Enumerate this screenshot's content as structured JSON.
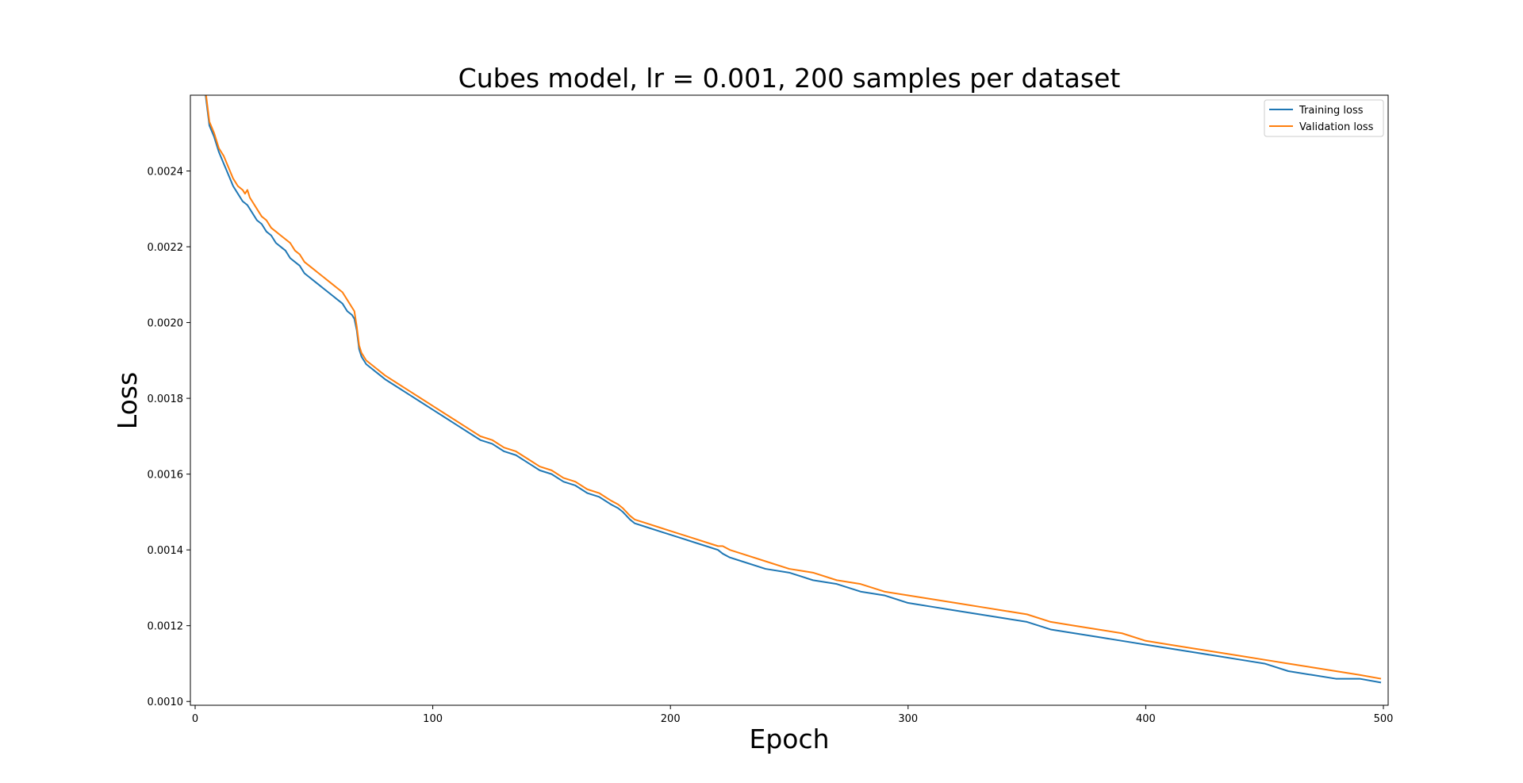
{
  "chart_data": {
    "type": "line",
    "title": "Cubes model, lr = 0.001, 200 samples per dataset",
    "xlabel": "Epoch",
    "ylabel": "Loss",
    "xlim": [
      -2,
      502
    ],
    "ylim": [
      0.00099,
      0.0026
    ],
    "x_ticks": [
      0,
      100,
      200,
      300,
      400,
      500
    ],
    "y_ticks": [
      0.001,
      0.0012,
      0.0014,
      0.0016,
      0.0018,
      0.002,
      0.0022,
      0.0024
    ],
    "x_tick_labels": [
      "0",
      "100",
      "200",
      "300",
      "400",
      "500"
    ],
    "y_tick_labels": [
      "0.0010",
      "0.0012",
      "0.0014",
      "0.0016",
      "0.0018",
      "0.0020",
      "0.0022",
      "0.0024"
    ],
    "grid": false,
    "legend_position": "top-right",
    "series": [
      {
        "name": "Training loss",
        "color": "#1f77b4",
        "x": [
          2,
          4,
          6,
          8,
          10,
          12,
          14,
          16,
          18,
          20,
          22,
          24,
          26,
          28,
          30,
          32,
          34,
          36,
          38,
          40,
          42,
          44,
          46,
          48,
          50,
          52,
          54,
          56,
          58,
          60,
          62,
          64,
          66,
          67,
          68,
          69,
          70,
          71,
          72,
          74,
          76,
          78,
          80,
          85,
          90,
          95,
          100,
          105,
          110,
          115,
          120,
          125,
          130,
          135,
          140,
          145,
          150,
          155,
          160,
          165,
          170,
          175,
          178,
          180,
          183,
          185,
          190,
          195,
          200,
          205,
          210,
          215,
          220,
          222,
          225,
          230,
          240,
          250,
          260,
          270,
          280,
          290,
          300,
          310,
          320,
          330,
          340,
          350,
          360,
          370,
          380,
          390,
          400,
          410,
          420,
          430,
          440,
          450,
          460,
          470,
          480,
          490,
          499
        ],
        "y": [
          0.0027,
          0.00262,
          0.00252,
          0.00249,
          0.00245,
          0.00242,
          0.00239,
          0.00236,
          0.00234,
          0.00232,
          0.00231,
          0.00229,
          0.00227,
          0.00226,
          0.00224,
          0.00223,
          0.00221,
          0.0022,
          0.00219,
          0.00217,
          0.00216,
          0.00215,
          0.00213,
          0.00212,
          0.00211,
          0.0021,
          0.00209,
          0.00208,
          0.00207,
          0.00206,
          0.00205,
          0.00203,
          0.00202,
          0.00201,
          0.00198,
          0.00193,
          0.00191,
          0.0019,
          0.00189,
          0.00188,
          0.00187,
          0.00186,
          0.00185,
          0.00183,
          0.00181,
          0.00179,
          0.00177,
          0.00175,
          0.00173,
          0.00171,
          0.00169,
          0.00168,
          0.00166,
          0.00165,
          0.00163,
          0.00161,
          0.0016,
          0.00158,
          0.00157,
          0.00155,
          0.00154,
          0.00152,
          0.00151,
          0.0015,
          0.00148,
          0.00147,
          0.00146,
          0.00145,
          0.00144,
          0.00143,
          0.00142,
          0.00141,
          0.0014,
          0.00139,
          0.00138,
          0.00137,
          0.00135,
          0.00134,
          0.00132,
          0.00131,
          0.00129,
          0.00128,
          0.00126,
          0.00125,
          0.00124,
          0.00123,
          0.00122,
          0.00121,
          0.00119,
          0.00118,
          0.00117,
          0.00116,
          0.00115,
          0.00114,
          0.00113,
          0.00112,
          0.00111,
          0.0011,
          0.00108,
          0.00107,
          0.00106,
          0.00106,
          0.00105
        ]
      },
      {
        "name": "Validation loss",
        "color": "#ff7f0e",
        "x": [
          2,
          4,
          6,
          8,
          10,
          12,
          14,
          16,
          18,
          20,
          21,
          22,
          23,
          24,
          26,
          28,
          30,
          32,
          34,
          36,
          38,
          40,
          42,
          44,
          46,
          48,
          50,
          52,
          54,
          56,
          58,
          60,
          62,
          64,
          66,
          67,
          68,
          69,
          70,
          71,
          72,
          74,
          76,
          78,
          80,
          85,
          90,
          95,
          100,
          105,
          110,
          115,
          120,
          125,
          130,
          135,
          140,
          145,
          150,
          155,
          160,
          165,
          170,
          175,
          178,
          180,
          183,
          185,
          190,
          195,
          200,
          205,
          210,
          215,
          220,
          222,
          225,
          230,
          240,
          250,
          260,
          270,
          280,
          290,
          300,
          310,
          320,
          330,
          340,
          350,
          360,
          370,
          380,
          390,
          400,
          410,
          420,
          430,
          440,
          450,
          460,
          470,
          480,
          490,
          499
        ],
        "y": [
          0.00271,
          0.00263,
          0.00253,
          0.0025,
          0.00246,
          0.00244,
          0.00241,
          0.00238,
          0.00236,
          0.00235,
          0.00234,
          0.00235,
          0.00233,
          0.00232,
          0.0023,
          0.00228,
          0.00227,
          0.00225,
          0.00224,
          0.00223,
          0.00222,
          0.00221,
          0.00219,
          0.00218,
          0.00216,
          0.00215,
          0.00214,
          0.00213,
          0.00212,
          0.00211,
          0.0021,
          0.00209,
          0.00208,
          0.00206,
          0.00204,
          0.00203,
          0.00199,
          0.00194,
          0.00192,
          0.00191,
          0.0019,
          0.00189,
          0.00188,
          0.00187,
          0.00186,
          0.00184,
          0.00182,
          0.0018,
          0.00178,
          0.00176,
          0.00174,
          0.00172,
          0.0017,
          0.00169,
          0.00167,
          0.00166,
          0.00164,
          0.00162,
          0.00161,
          0.00159,
          0.00158,
          0.00156,
          0.00155,
          0.00153,
          0.00152,
          0.00151,
          0.00149,
          0.00148,
          0.00147,
          0.00146,
          0.00145,
          0.00144,
          0.00143,
          0.00142,
          0.00141,
          0.00141,
          0.0014,
          0.00139,
          0.00137,
          0.00135,
          0.00134,
          0.00132,
          0.00131,
          0.00129,
          0.00128,
          0.00127,
          0.00126,
          0.00125,
          0.00124,
          0.00123,
          0.00121,
          0.0012,
          0.00119,
          0.00118,
          0.00116,
          0.00115,
          0.00114,
          0.00113,
          0.00112,
          0.00111,
          0.0011,
          0.00109,
          0.00108,
          0.00107,
          0.00106
        ]
      }
    ]
  }
}
